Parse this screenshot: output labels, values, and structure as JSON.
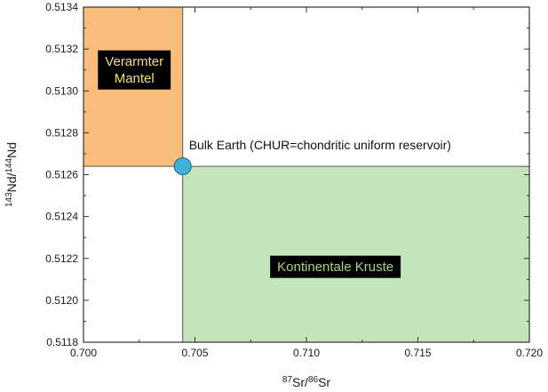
{
  "chart_data": {
    "type": "scatter",
    "x_ticks": [
      0.7,
      0.705,
      0.71,
      0.715,
      0.72
    ],
    "x_tick_labels": [
      "0.700",
      "0.705",
      "0.710",
      "0.715",
      "0.720"
    ],
    "y_ticks": [
      0.5118,
      0.512,
      0.5122,
      0.5124,
      0.5126,
      0.5128,
      0.513,
      0.5132,
      0.5134
    ],
    "y_tick_labels": [
      "0.5118",
      "0.5120",
      "0.5122",
      "0.5124",
      "0.5126",
      "0.5128",
      "0.5130",
      "0.5132",
      "0.5134"
    ],
    "xlim": [
      0.7,
      0.72
    ],
    "ylim": [
      0.5118,
      0.5134
    ],
    "xlabel": {
      "sup1": "87",
      "main1": "Sr/",
      "sup2": "86",
      "main2": "Sr"
    },
    "ylabel": {
      "sup1": "143",
      "main1": "Nd/",
      "sup2": "144",
      "main2": "Nd"
    },
    "regions": [
      {
        "name": "depleted-mantle",
        "x": [
          0.7,
          0.70445
        ],
        "y": [
          0.51264,
          0.5134
        ],
        "color": "#f9bd7b",
        "label_lines": [
          "Verarmter",
          "Mantel"
        ],
        "label_x": 0.70228,
        "label_y": 0.5131,
        "label_color": "#f6e06a"
      },
      {
        "name": "continental-crust",
        "x": [
          0.70445,
          0.72
        ],
        "y": [
          0.5118,
          0.51264
        ],
        "color": "#c2e5bb",
        "label_lines": [
          "Kontinentale Kruste"
        ],
        "label_x": 0.7113,
        "label_y": 0.51216,
        "label_color": "#a8d67a"
      }
    ],
    "points": [
      {
        "name": "bulk-earth",
        "x": 0.70445,
        "y": 0.51264,
        "color": "#3eb3da",
        "label": "Bulk Earth (CHUR=chondritic uniform reservoir)"
      }
    ],
    "colors": {
      "axis": "#333333",
      "label_box": "#000000",
      "divider": "#555555"
    },
    "grid": false
  }
}
